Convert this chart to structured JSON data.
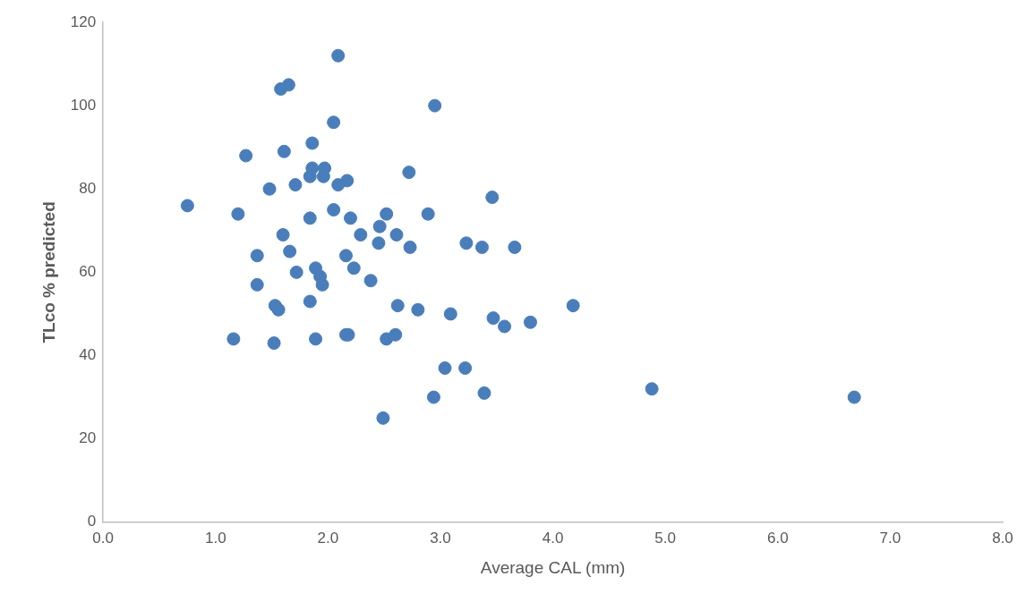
{
  "chart_data": {
    "type": "scatter",
    "xlabel": "Average CAL (mm)",
    "ylabel": "TLco % predicted",
    "color": "#4a7ebb",
    "marker": "circle",
    "grid": false,
    "legend": false,
    "x": [
      0.75,
      1.2,
      1.27,
      1.48,
      1.37,
      1.37,
      1.16,
      1.52,
      1.53,
      1.56,
      1.58,
      1.65,
      1.61,
      1.6,
      1.66,
      1.71,
      1.72,
      1.84,
      1.86,
      1.86,
      1.84,
      1.84,
      1.89,
      1.93,
      1.95,
      1.89,
      1.96,
      1.97,
      2.09,
      2.05,
      2.09,
      2.17,
      2.05,
      2.2,
      2.16,
      2.23,
      2.16,
      2.18,
      2.29,
      2.38,
      2.46,
      2.45,
      2.52,
      2.49,
      2.52,
      2.61,
      2.62,
      2.6,
      2.72,
      2.73,
      2.8,
      2.89,
      2.95,
      2.94,
      3.04,
      3.09,
      3.22,
      3.23,
      3.37,
      3.39,
      3.46,
      3.47,
      3.57,
      3.66,
      3.8,
      4.18,
      4.88,
      6.68
    ],
    "values": [
      76,
      74,
      88,
      80,
      64,
      57,
      44,
      43,
      52,
      51,
      104,
      105,
      89,
      69,
      65,
      81,
      60,
      83,
      85,
      91,
      73,
      53,
      61,
      59,
      57,
      44,
      83,
      85,
      112,
      96,
      81,
      82,
      75,
      73,
      64,
      61,
      45,
      45,
      69,
      58,
      71,
      67,
      74,
      25,
      44,
      69,
      52,
      45,
      84,
      66,
      51,
      74,
      100,
      30,
      37,
      50,
      37,
      67,
      66,
      31,
      78,
      49,
      47,
      66,
      48,
      52,
      32,
      30
    ],
    "xlim": [
      0,
      8
    ],
    "xticks": [
      {
        "value": 0,
        "label": "0.0"
      },
      {
        "value": 1,
        "label": "1.0"
      },
      {
        "value": 2,
        "label": "2.0"
      },
      {
        "value": 3,
        "label": "3.0"
      },
      {
        "value": 4,
        "label": "4.0"
      },
      {
        "value": 5,
        "label": "5.0"
      },
      {
        "value": 6,
        "label": "6.0"
      },
      {
        "value": 7,
        "label": "7.0"
      },
      {
        "value": 8,
        "label": "8.0"
      }
    ],
    "ylim": [
      0,
      120
    ],
    "yticks": [
      0,
      20,
      40,
      60,
      80,
      100,
      120
    ]
  }
}
